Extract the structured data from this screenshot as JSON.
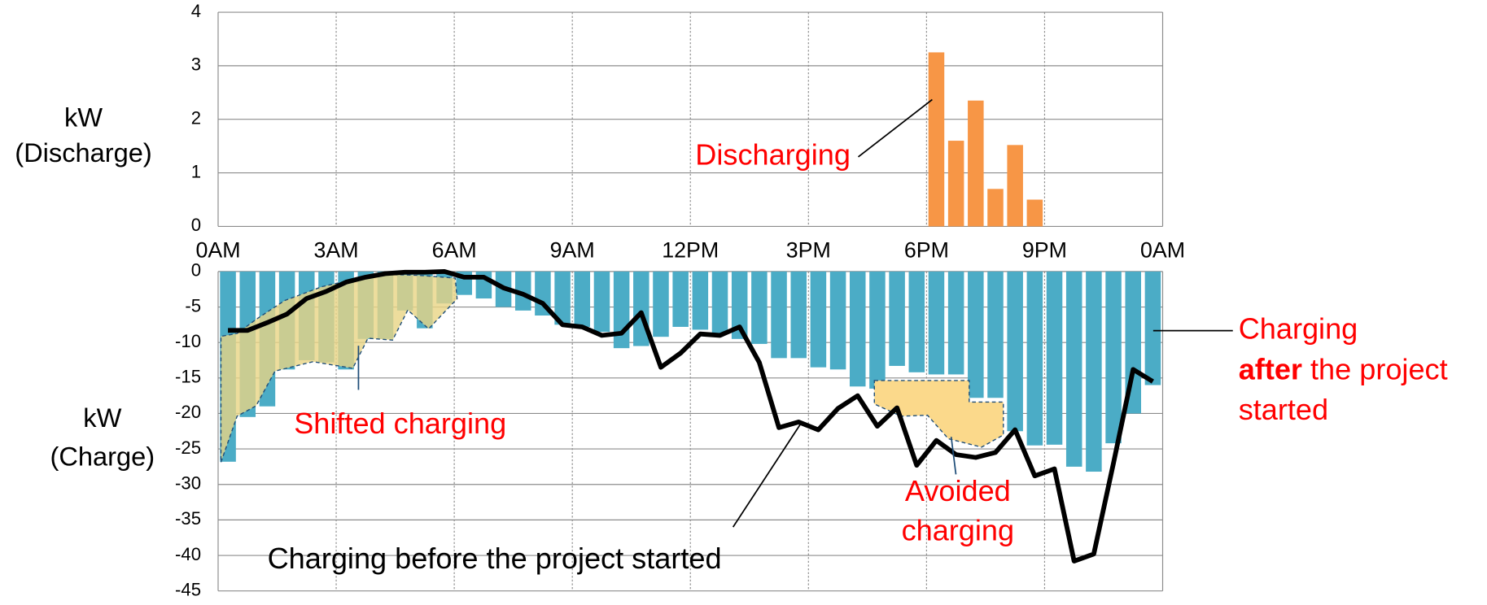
{
  "chart_data": [
    {
      "type": "bar",
      "ylabel": [
        "kW",
        "(Discharge)"
      ],
      "x": [
        18,
        18.5,
        19,
        19.5,
        20,
        20.5
      ],
      "values": [
        3.25,
        1.6,
        2.35,
        0.7,
        1.52,
        0.5
      ],
      "color": "#f79646",
      "xlim": [
        0,
        24
      ],
      "xticks": [
        {
          "value": 0,
          "label": "0AM"
        },
        {
          "value": 3,
          "label": "3AM"
        },
        {
          "value": 6,
          "label": "6AM"
        },
        {
          "value": 9,
          "label": "9AM"
        },
        {
          "value": 12,
          "label": "12PM"
        },
        {
          "value": 15,
          "label": "3PM"
        },
        {
          "value": 18,
          "label": "6PM"
        },
        {
          "value": 21,
          "label": "9PM"
        },
        {
          "value": 24,
          "label": "0AM"
        }
      ],
      "ylim": [
        0,
        4
      ],
      "yticks": [
        0,
        1,
        2,
        3,
        4
      ],
      "grid": true,
      "annotation": "Discharging"
    },
    {
      "type": "bar_line",
      "ylabel": [
        "kW",
        "(Charge)"
      ],
      "x": [
        0,
        0.5,
        1,
        1.5,
        2,
        2.5,
        3,
        3.5,
        4,
        4.5,
        5,
        5.5,
        6,
        6.5,
        7,
        7.5,
        8,
        8.5,
        9,
        9.5,
        10,
        10.5,
        11,
        11.5,
        12,
        12.5,
        13,
        13.5,
        14,
        14.5,
        15,
        15.5,
        16,
        16.5,
        17,
        17.5,
        18,
        18.5,
        19,
        19.5,
        20,
        20.5,
        21,
        21.5,
        22,
        22.5,
        23,
        23.5
      ],
      "series": [
        {
          "type": "bar",
          "color": "#4bacc6",
          "values": [
            -26.8,
            -20.5,
            -19,
            -13.8,
            -12.5,
            -12.8,
            -13.8,
            -9.5,
            -9.5,
            -5.5,
            -8,
            -4.5,
            -3.3,
            -3.8,
            -5,
            -5.5,
            -6.2,
            -7.5,
            -7.8,
            -8.5,
            -10.8,
            -10.5,
            -9.2,
            -7.8,
            -8.2,
            -8.8,
            -9.5,
            -10.2,
            -12.2,
            -12.2,
            -13.5,
            -13.8,
            -16.2,
            -16.5,
            -13.3,
            -14.2,
            -14.5,
            -14.5,
            -17.8,
            -17.8,
            -22.5,
            -24.5,
            -24.4,
            -27.5,
            -28.2,
            -24.2,
            -20,
            -16
          ]
        },
        {
          "type": "line",
          "color": "#000000",
          "values": [
            -8.3,
            -8.3,
            -7.2,
            -6,
            -3.8,
            -2.8,
            -1.5,
            -0.8,
            -0.3,
            -0.1,
            -0.1,
            0,
            -0.8,
            -0.8,
            -2.3,
            -3.2,
            -4.5,
            -7.5,
            -7.8,
            -9,
            -8.7,
            -5.8,
            -13.5,
            -11.5,
            -8.8,
            -9,
            -7.8,
            -12.8,
            -22,
            -21.2,
            -22.3,
            -19.3,
            -17.5,
            -21.8,
            -19.2,
            -27.3,
            -23.8,
            -25.8,
            -26.2,
            -25.5,
            -22.3,
            -28.8,
            -27.8,
            -40.8,
            -39.8,
            -27,
            -13.8,
            -15.5
          ]
        }
      ],
      "xlim": [
        0,
        24
      ],
      "xticks": [
        0,
        3,
        6,
        9,
        12,
        15,
        18,
        21,
        24
      ],
      "ylim": [
        -45,
        0
      ],
      "yticks": [
        0,
        -5,
        -10,
        -15,
        -20,
        -25,
        -30,
        -35,
        -40,
        -45
      ],
      "grid": true,
      "annotations": {
        "shifted": "Shifted charging",
        "avoided": [
          "Avoided",
          "charging"
        ],
        "before": "Charging before the project started",
        "after": [
          [
            "Charging"
          ],
          [
            "after",
            " the project"
          ],
          [
            "started"
          ]
        ],
        "after_bold": [
          [
            false
          ],
          [
            true,
            false
          ],
          [
            false
          ]
        ]
      }
    }
  ]
}
